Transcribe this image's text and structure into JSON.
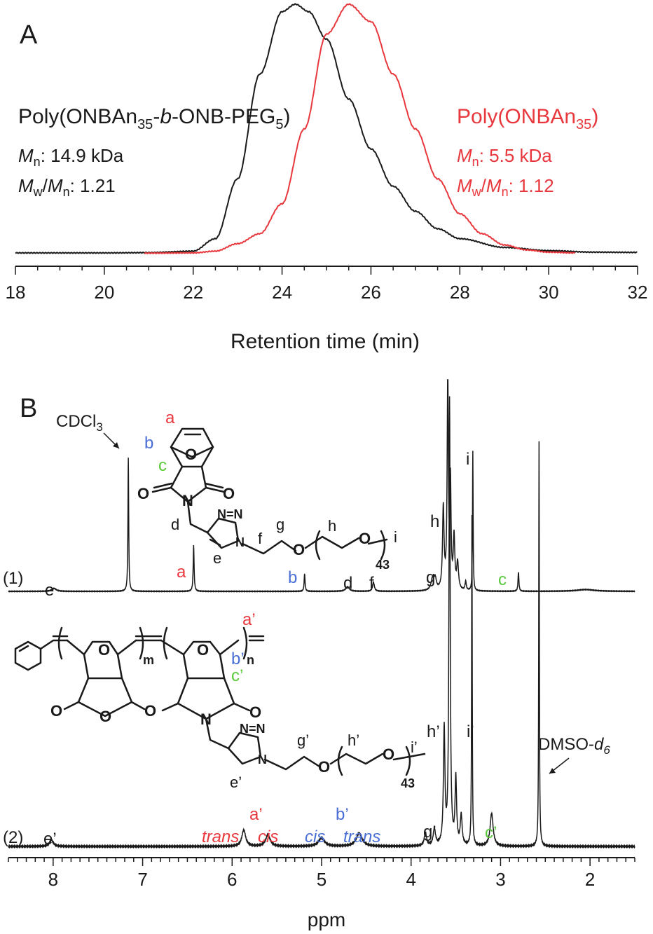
{
  "colors": {
    "black": "#1a1a1a",
    "red": "#e8383d",
    "blue": "#4a6fd6",
    "green": "#58c93a"
  },
  "chart_data": [
    {
      "type": "line",
      "panel_label": "A",
      "xlabel": "Retention time (min)",
      "xlim": [
        18,
        32
      ],
      "x_ticks": [
        "18",
        "20",
        "22",
        "24",
        "26",
        "28",
        "30",
        "32"
      ],
      "series": [
        {
          "name": "Poly(ONBAn35-b-ONB-PEG5)",
          "color": "#1a1a1a",
          "peak_x": 24.3,
          "range": [
            18,
            32
          ],
          "points": [
            [
              18,
              0.003
            ],
            [
              20,
              0.003
            ],
            [
              21,
              0.004
            ],
            [
              22,
              0.01
            ],
            [
              22.5,
              0.06
            ],
            [
              23,
              0.3
            ],
            [
              23.5,
              0.72
            ],
            [
              24,
              0.97
            ],
            [
              24.3,
              1.0
            ],
            [
              24.6,
              0.97
            ],
            [
              25,
              0.86
            ],
            [
              25.5,
              0.62
            ],
            [
              26,
              0.42
            ],
            [
              26.5,
              0.27
            ],
            [
              27,
              0.17
            ],
            [
              27.5,
              0.1
            ],
            [
              28,
              0.06
            ],
            [
              29,
              0.025
            ],
            [
              30,
              0.012
            ],
            [
              31,
              0.006
            ],
            [
              32,
              0.005
            ]
          ]
        },
        {
          "name": "Poly(ONBAn35)",
          "color": "#e8383d",
          "peak_x": 25.5,
          "range": [
            20.9,
            30.6
          ],
          "points": [
            [
              20.9,
              0.002
            ],
            [
              22,
              0.003
            ],
            [
              22.5,
              0.01
            ],
            [
              23,
              0.04
            ],
            [
              23.5,
              0.08
            ],
            [
              24,
              0.2
            ],
            [
              24.5,
              0.5
            ],
            [
              25,
              0.88
            ],
            [
              25.5,
              1.0
            ],
            [
              26,
              0.93
            ],
            [
              26.5,
              0.72
            ],
            [
              27,
              0.5
            ],
            [
              27.5,
              0.3
            ],
            [
              28,
              0.16
            ],
            [
              28.5,
              0.08
            ],
            [
              29,
              0.035
            ],
            [
              29.5,
              0.015
            ],
            [
              30,
              0.006
            ],
            [
              30.6,
              0.003
            ]
          ]
        }
      ],
      "annotations": [
        {
          "name": "black-sample",
          "title": [
            "Poly(ONBAn",
            "35",
            "-",
            "b",
            "-ONB-PEG",
            "5",
            ")"
          ],
          "mn": "14.9 kDa",
          "pdi": "1.21"
        },
        {
          "name": "red-sample",
          "title": [
            "Poly(ONBAn",
            "35",
            ")"
          ],
          "mn": "5.5 kDa",
          "pdi": "1.12"
        }
      ],
      "mn_label": [
        "M",
        "n"
      ],
      "mw_label": [
        "M",
        "w"
      ]
    },
    {
      "type": "line",
      "panel_label": "B",
      "xlabel": "ppm",
      "xlim": [
        8.5,
        1.5
      ],
      "x_ticks": [
        "8",
        "7",
        "6",
        "5",
        "4",
        "3",
        "2"
      ],
      "series": [
        {
          "name": "(1)",
          "color": "#1a1a1a",
          "peaks": [
            {
              "ppm": 7.99,
              "h": 0.02,
              "w": 0.03
            },
            {
              "ppm": 7.16,
              "h": 0.9,
              "w": 0.005
            },
            {
              "ppm": 6.43,
              "h": 0.31,
              "w": 0.006
            },
            {
              "ppm": 5.19,
              "h": 0.12,
              "w": 0.006
            },
            {
              "ppm": 4.71,
              "h": 0.03,
              "w": 0.025
            },
            {
              "ppm": 4.42,
              "h": 0.06,
              "w": 0.012
            },
            {
              "ppm": 3.76,
              "h": 0.08,
              "w": 0.02
            },
            {
              "ppm": 3.73,
              "h": 0.07,
              "w": 0.015
            },
            {
              "ppm": 3.64,
              "h": 0.55,
              "w": 0.01
            },
            {
              "ppm": 3.59,
              "h": 1.45,
              "w": 0.008
            },
            {
              "ppm": 3.56,
              "h": 0.7,
              "w": 0.008
            },
            {
              "ppm": 3.52,
              "h": 0.35,
              "w": 0.01
            },
            {
              "ppm": 3.48,
              "h": 0.18,
              "w": 0.012
            },
            {
              "ppm": 3.39,
              "h": 0.06,
              "w": 0.008
            },
            {
              "ppm": 3.31,
              "h": 0.94,
              "w": 0.004
            },
            {
              "ppm": 2.8,
              "h": 0.13,
              "w": 0.006
            },
            {
              "ppm": 2.05,
              "h": 0.012,
              "w": 0.12
            }
          ]
        },
        {
          "name": "(2)",
          "color": "#1a1a1a",
          "peaks": [
            {
              "ppm": 8.02,
              "h": 0.02,
              "w": 0.025
            },
            {
              "ppm": 5.87,
              "h": 0.05,
              "w": 0.025
            },
            {
              "ppm": 5.6,
              "h": 0.035,
              "w": 0.03
            },
            {
              "ppm": 5.0,
              "h": 0.025,
              "w": 0.04
            },
            {
              "ppm": 4.58,
              "h": 0.04,
              "w": 0.04
            },
            {
              "ppm": 3.84,
              "h": 0.04,
              "w": 0.015
            },
            {
              "ppm": 3.74,
              "h": 0.05,
              "w": 0.015
            },
            {
              "ppm": 3.63,
              "h": 0.35,
              "w": 0.01
            },
            {
              "ppm": 3.57,
              "h": 1.35,
              "w": 0.008
            },
            {
              "ppm": 3.5,
              "h": 0.2,
              "w": 0.01
            },
            {
              "ppm": 3.44,
              "h": 0.09,
              "w": 0.012
            },
            {
              "ppm": 3.32,
              "h": 1.0,
              "w": 0.004
            },
            {
              "ppm": 3.1,
              "h": 0.1,
              "w": 0.02
            },
            {
              "ppm": 2.57,
              "h": 1.23,
              "w": 0.004
            }
          ]
        }
      ],
      "peak_labels_1": [
        {
          "text": "e",
          "color": "#1a1a1a"
        },
        {
          "text": "a",
          "color": "#e8383d"
        },
        {
          "text": "b",
          "color": "#4a6fd6"
        },
        {
          "text": "d",
          "color": "#1a1a1a"
        },
        {
          "text": "f",
          "color": "#1a1a1a"
        },
        {
          "text": "g",
          "color": "#1a1a1a"
        },
        {
          "text": "h",
          "color": "#1a1a1a"
        },
        {
          "text": "i",
          "color": "#1a1a1a"
        },
        {
          "text": "c",
          "color": "#58c93a"
        }
      ],
      "peak_labels_2": [
        {
          "text": "e’",
          "color": "#1a1a1a"
        },
        {
          "text": "a’",
          "color": "#e8383d"
        },
        {
          "text": "trans",
          "color": "#e8383d",
          "italic": true
        },
        {
          "text": "cis",
          "color": "#e8383d",
          "italic": true
        },
        {
          "text": "cis",
          "color": "#4a6fd6",
          "italic": true
        },
        {
          "text": "b’",
          "color": "#4a6fd6"
        },
        {
          "text": "trans",
          "color": "#4a6fd6",
          "italic": true
        },
        {
          "text": "g’",
          "color": "#1a1a1a"
        },
        {
          "text": "h’",
          "color": "#1a1a1a"
        },
        {
          "text": "i’",
          "color": "#1a1a1a"
        },
        {
          "text": "c’",
          "color": "#58c93a"
        }
      ],
      "solvent_labels": {
        "cdcl3": [
          "CDCl",
          "3"
        ],
        "dmso": [
          "DMSO-",
          "d",
          "6"
        ]
      },
      "structure1_labels": {
        "a": "a",
        "b": "b",
        "c": "c",
        "d": "d",
        "e": "e",
        "f": "f",
        "g": "g",
        "h": "h",
        "i": "i",
        "n": "N",
        "o": "O",
        "sub": "43"
      },
      "structure2_labels": {
        "a": "a’",
        "b": "b’",
        "c": "c’",
        "e": "e’",
        "g": "g’",
        "h": "h’",
        "i": "i’",
        "m": "m",
        "n": "n",
        "N": "N",
        "O": "O",
        "sub": "43"
      }
    }
  ]
}
